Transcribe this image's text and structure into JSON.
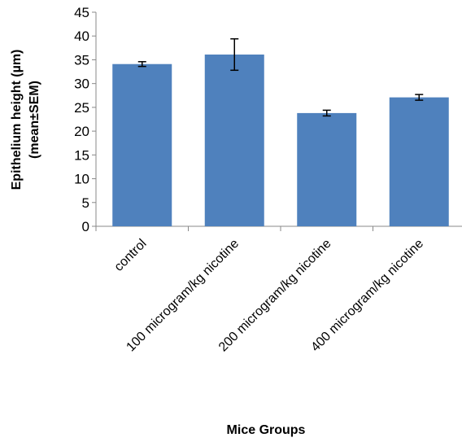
{
  "chart_data": {
    "type": "bar",
    "categories": [
      "control",
      "100 microgram/kg nicotine",
      "200 microgram/kg nicotine",
      "400 microgram/kg nicotine"
    ],
    "series": [
      {
        "values": [
          34.1,
          36.1,
          23.8,
          27.1
        ],
        "error": [
          0.5,
          3.3,
          0.6,
          0.6
        ]
      }
    ],
    "title": "",
    "xlabel": "Mice Groups",
    "ylabel_line1": "Epithelium height (µm)",
    "ylabel_line2": "(mean±SEM)",
    "ylim": [
      0,
      45
    ],
    "yticks": [
      "0",
      "5",
      "10",
      "15",
      "20",
      "25",
      "30",
      "35",
      "40",
      "45"
    ],
    "grid": false,
    "legend": "none",
    "colors": {
      "bar": "#4f81bd",
      "axis": "#888888",
      "error_bar": "#000000"
    }
  }
}
